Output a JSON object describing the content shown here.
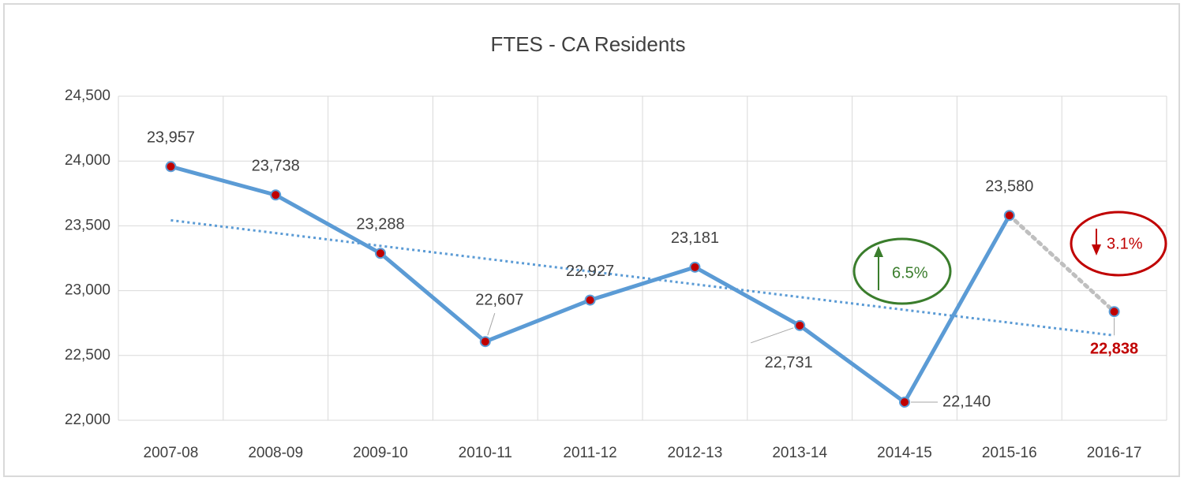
{
  "chart_data": {
    "type": "line",
    "title": "FTES - CA Residents",
    "categories": [
      "2007-08",
      "2008-09",
      "2009-10",
      "2010-11",
      "2011-12",
      "2012-13",
      "2013-14",
      "2014-15",
      "2015-16",
      "2016-17"
    ],
    "series": [
      {
        "name": "FTES",
        "color": "#5b9bd5",
        "marker_color": "#c00000",
        "last_segment_color": "#bfbfbf",
        "trendline_color": "#5b9bd5",
        "values": [
          23957,
          23738,
          23288,
          22607,
          22927,
          23181,
          22731,
          22140,
          23580,
          22838
        ],
        "value_labels": [
          "23,957",
          "23,738",
          "23,288",
          "22,607",
          "22,927",
          "23,181",
          "22,731",
          "22,140",
          "23,580",
          "22,838"
        ]
      }
    ],
    "ylim": [
      22000,
      24500
    ],
    "yticks": [
      {
        "value": 22000,
        "label": "22,000"
      },
      {
        "value": 22500,
        "label": "22,500"
      },
      {
        "value": 23000,
        "label": "23,000"
      },
      {
        "value": 23500,
        "label": "23,500"
      },
      {
        "value": 24000,
        "label": "24,000"
      },
      {
        "value": 24500,
        "label": "24,500"
      }
    ],
    "grid": true,
    "annotations": [
      {
        "text": "6.5%",
        "color": "#3a7d2c"
      },
      {
        "text": "3.1%",
        "color": "#c00000"
      }
    ]
  }
}
